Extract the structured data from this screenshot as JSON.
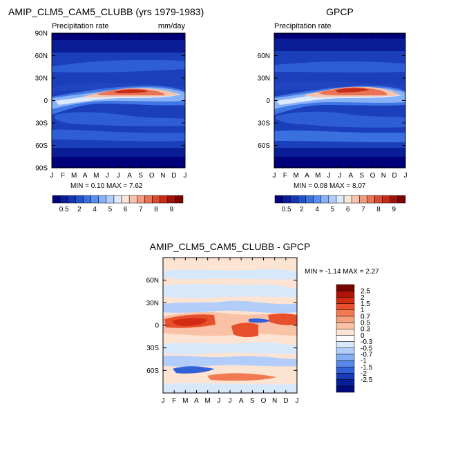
{
  "figure": {
    "panel_a": {
      "title": "AMIP_CLM5_CAM5_CLUBB (yrs 1979-1983)",
      "subtitle": "Precipitation rate",
      "units": "mm/day",
      "stats": "MIN =   0.10 MAX =    7.62"
    },
    "panel_b": {
      "title": "GPCP",
      "subtitle": "Precipitation rate",
      "stats": "MIN =   0.08 MAX =    8.07"
    },
    "panel_c": {
      "title": "AMIP_CLM5_CAM5_CLUBB - GPCP",
      "stats": "MIN =  -1.14 MAX =    2.27"
    }
  },
  "chart_data": [
    {
      "type": "heatmap",
      "title": "AMIP_CLM5_CAM5_CLUBB (yrs 1979-1983)",
      "variable": "Precipitation rate",
      "units": "mm/day",
      "x": [
        "J",
        "F",
        "M",
        "A",
        "M",
        "J",
        "J",
        "A",
        "S",
        "O",
        "N",
        "D",
        "J"
      ],
      "y_ticks": [
        "90N",
        "60N",
        "30N",
        "0",
        "30S",
        "60S",
        "90S"
      ],
      "ylim": [
        -90,
        90
      ],
      "min": 0.1,
      "max": 7.62,
      "colorbar": {
        "labels": [
          "0.5",
          "2",
          "4",
          "5",
          "6",
          "7",
          "8",
          "9"
        ],
        "colors": [
          "#00007a",
          "#0a1d96",
          "#1535b4",
          "#2152cc",
          "#3a6fe0",
          "#5b8ef0",
          "#86b0f7",
          "#b3cdfb",
          "#dde9fd",
          "#fbe6dc",
          "#f6c3ad",
          "#f19c80",
          "#e97356",
          "#da4b30",
          "#c62a18",
          "#a11308",
          "#7a0400"
        ]
      }
    },
    {
      "type": "heatmap",
      "title": "GPCP",
      "variable": "Precipitation rate",
      "x": [
        "J",
        "F",
        "M",
        "A",
        "M",
        "J",
        "J",
        "A",
        "S",
        "O",
        "N",
        "D",
        "J"
      ],
      "y_ticks": [
        "60N",
        "30N",
        "0",
        "30S",
        "60S"
      ],
      "ylim": [
        -90,
        90
      ],
      "min": 0.08,
      "max": 8.07,
      "colorbar": {
        "labels": [
          "0.5",
          "2",
          "4",
          "5",
          "6",
          "7",
          "8",
          "9"
        ]
      }
    },
    {
      "type": "heatmap",
      "title": "AMIP_CLM5_CAM5_CLUBB - GPCP",
      "x": [
        "J",
        "F",
        "M",
        "A",
        "M",
        "J",
        "J",
        "A",
        "S",
        "O",
        "N",
        "D",
        "J"
      ],
      "y_ticks": [
        "60N",
        "30N",
        "0",
        "30S",
        "60S"
      ],
      "ylim": [
        -90,
        90
      ],
      "min": -1.14,
      "max": 2.27,
      "colorbar": {
        "labels": [
          "2.5",
          "2",
          "1.5",
          "1",
          "0.7",
          "0.5",
          "0.3",
          "0",
          "-0.3",
          "-0.5",
          "-0.7",
          "-1",
          "-1.5",
          "-2",
          "-2.5"
        ],
        "colors": [
          "#7a0400",
          "#b01408",
          "#d22c14",
          "#e8502c",
          "#f27a52",
          "#f6a07c",
          "#f9c2a6",
          "#fde3d2",
          "#ffffff",
          "#d8e8fb",
          "#b3cdfb",
          "#86aef5",
          "#5a88ea",
          "#3260d8",
          "#163ab8",
          "#061f96",
          "#000a7a"
        ]
      }
    }
  ]
}
